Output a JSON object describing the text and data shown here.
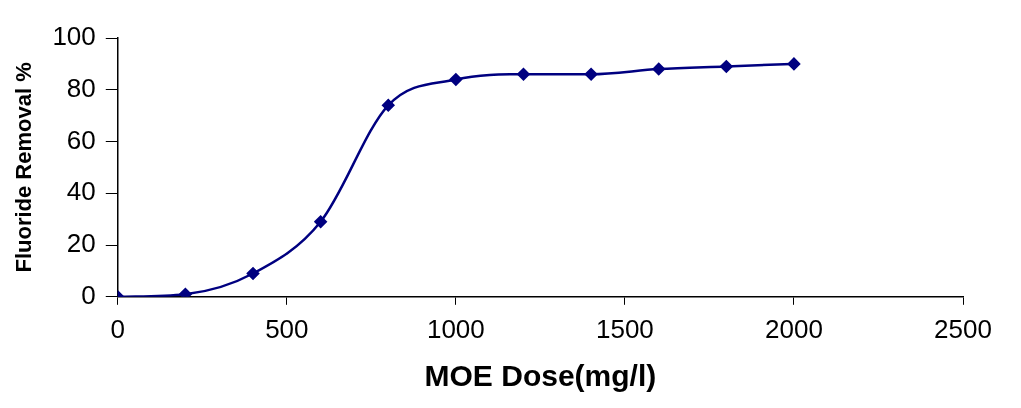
{
  "chart_data": {
    "type": "line",
    "xlabel": "MOE Dose(mg/l)",
    "ylabel": "Fluoride Removal %",
    "x": [
      0,
      200,
      400,
      600,
      800,
      1000,
      1200,
      1400,
      1600,
      1800,
      2000
    ],
    "series": [
      {
        "color": "#000080",
        "values": [
          0,
          1,
          9,
          29,
          74,
          84,
          86,
          86,
          88,
          89,
          90
        ]
      }
    ],
    "xlim": [
      0,
      2500
    ],
    "xticks": [
      0,
      500,
      1000,
      1500,
      2000,
      2500
    ],
    "ylim": [
      0,
      100
    ],
    "yticks": [
      0,
      20,
      40,
      60,
      80,
      100
    ],
    "grid": false,
    "legend": false,
    "marker": "diamond",
    "line_style": "solid"
  }
}
